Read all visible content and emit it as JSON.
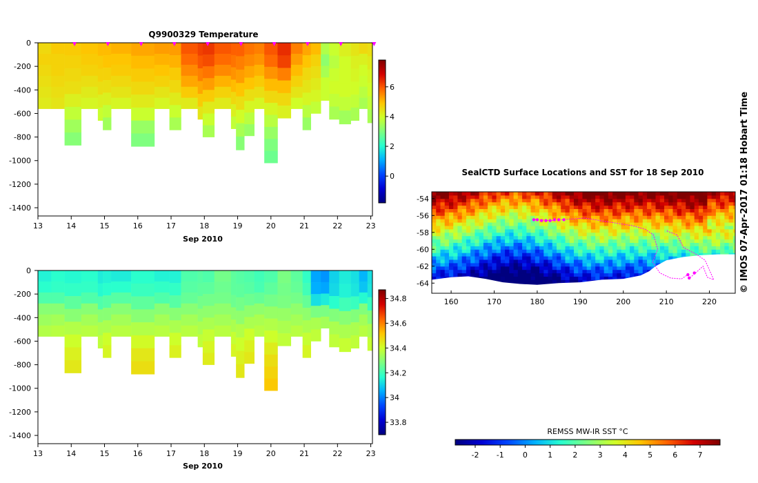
{
  "footer_note": "© IMOS 07-Apr-2017 01:18 Hobart Time",
  "colormap": [
    "#00007f",
    "#0000d4",
    "#0047ff",
    "#00b0ff",
    "#29ffce",
    "#7fff7f",
    "#ceff29",
    "#ffc400",
    "#ff6200",
    "#d40000",
    "#7f0000"
  ],
  "track_color": "#ff00ff",
  "chart_data": [
    {
      "id": "temperature",
      "type": "heatmap",
      "title": "Q9900329  Temperature",
      "xlabel": "Sep 2010",
      "xlim": [
        13,
        23.05
      ],
      "ylim": [
        -1470,
        0
      ],
      "xticks": [
        13,
        14,
        15,
        16,
        17,
        18,
        19,
        20,
        21,
        22,
        23
      ],
      "yticks": [
        0,
        -200,
        -400,
        -600,
        -800,
        -1000,
        -1200,
        -1400
      ],
      "colorbar": {
        "range": [
          -1.8,
          7.8
        ],
        "ticks": [
          6,
          4,
          2,
          0
        ]
      },
      "surface_markers": [
        14.1,
        15.1,
        16.1,
        17.1,
        18.1,
        19.1,
        20.1,
        21.1,
        22.1,
        23.1
      ],
      "profiles": [
        {
          "x": 13.0,
          "depth": 560,
          "values": [
            4.6,
            4.7,
            4.6,
            4.5,
            4.4,
            4.3
          ]
        },
        {
          "x": 13.4,
          "depth": 560,
          "values": [
            4.8,
            4.7,
            4.7,
            4.6,
            4.5,
            4.4
          ]
        },
        {
          "x": 13.8,
          "depth": 870,
          "values": [
            4.8,
            4.7,
            4.6,
            4.5,
            4.2,
            3.8,
            3.4,
            3.1
          ]
        },
        {
          "x": 14.3,
          "depth": 560,
          "values": [
            4.9,
            4.8,
            4.7,
            4.5,
            4.3,
            4.1
          ]
        },
        {
          "x": 14.8,
          "depth": 660,
          "values": [
            5.0,
            4.8,
            4.7,
            4.5,
            4.2,
            3.9
          ]
        },
        {
          "x": 14.95,
          "depth": 740,
          "values": [
            5.0,
            4.9,
            4.7,
            4.5,
            4.2,
            3.8,
            3.4
          ]
        },
        {
          "x": 15.2,
          "depth": 560,
          "values": [
            5.1,
            4.9,
            4.8,
            4.6,
            4.4,
            4.1
          ]
        },
        {
          "x": 15.8,
          "depth": 880,
          "values": [
            5.2,
            5.0,
            4.8,
            4.6,
            4.3,
            3.9,
            3.3,
            3.0
          ]
        },
        {
          "x": 16.5,
          "depth": 560,
          "values": [
            5.3,
            5.1,
            4.9,
            4.7,
            4.4,
            4.1
          ]
        },
        {
          "x": 16.95,
          "depth": 740,
          "values": [
            5.3,
            5.1,
            4.8,
            4.6,
            4.3,
            3.9,
            3.5
          ]
        },
        {
          "x": 17.3,
          "depth": 560,
          "values": [
            6.0,
            5.8,
            5.5,
            5.2,
            4.8,
            4.3
          ]
        },
        {
          "x": 17.8,
          "depth": 650,
          "values": [
            6.2,
            6.0,
            5.6,
            5.2,
            4.8,
            4.4
          ]
        },
        {
          "x": 17.95,
          "depth": 800,
          "values": [
            6.3,
            6.1,
            5.7,
            5.3,
            4.8,
            4.3,
            3.9,
            3.5
          ]
        },
        {
          "x": 18.3,
          "depth": 560,
          "values": [
            6.0,
            5.8,
            5.5,
            5.1,
            4.7,
            4.3
          ]
        },
        {
          "x": 18.8,
          "depth": 730,
          "values": [
            5.9,
            5.7,
            5.4,
            5.0,
            4.6,
            4.2,
            3.8
          ]
        },
        {
          "x": 18.95,
          "depth": 910,
          "values": [
            5.9,
            5.6,
            5.3,
            4.9,
            4.5,
            4.0,
            3.5,
            3.1
          ]
        },
        {
          "x": 19.2,
          "depth": 790,
          "values": [
            5.7,
            5.5,
            5.2,
            4.9,
            4.5,
            4.1,
            3.7,
            3.3
          ]
        },
        {
          "x": 19.5,
          "depth": 560,
          "values": [
            5.6,
            5.4,
            5.1,
            4.8,
            4.5,
            4.1
          ]
        },
        {
          "x": 19.8,
          "depth": 1020,
          "values": [
            6.0,
            5.8,
            5.4,
            5.0,
            4.6,
            4.1,
            3.7,
            3.3,
            3.0,
            2.8
          ]
        },
        {
          "x": 20.2,
          "depth": 640,
          "values": [
            6.4,
            6.2,
            5.6,
            5.0,
            4.6,
            4.2
          ]
        },
        {
          "x": 20.6,
          "depth": 560,
          "values": [
            5.6,
            5.3,
            5.0,
            4.7,
            4.4,
            4.0
          ]
        },
        {
          "x": 20.95,
          "depth": 740,
          "values": [
            5.2,
            4.9,
            4.6,
            4.4,
            4.1,
            3.7,
            3.3
          ]
        },
        {
          "x": 21.2,
          "depth": 600,
          "values": [
            5.0,
            4.7,
            4.5,
            4.3,
            4.1,
            3.8
          ]
        },
        {
          "x": 21.5,
          "depth": 490,
          "values": [
            3.6,
            3.2,
            3.5,
            3.9,
            3.9
          ]
        },
        {
          "x": 21.75,
          "depth": 650,
          "values": [
            3.9,
            3.7,
            3.9,
            4.0,
            3.8,
            3.5
          ]
        },
        {
          "x": 22.05,
          "depth": 690,
          "values": [
            4.2,
            4.0,
            4.0,
            4.0,
            3.8,
            3.4
          ]
        },
        {
          "x": 22.4,
          "depth": 660,
          "values": [
            4.4,
            4.2,
            4.1,
            4.0,
            3.8,
            3.5
          ]
        },
        {
          "x": 22.65,
          "depth": 560,
          "values": [
            4.6,
            4.2,
            4.0,
            3.9,
            3.7,
            3.5
          ]
        },
        {
          "x": 22.9,
          "depth": 680,
          "values": [
            4.5,
            4.3,
            4.1,
            4.0,
            3.8,
            3.5
          ]
        }
      ]
    },
    {
      "id": "salinity",
      "type": "heatmap",
      "title": "",
      "xlabel": "Sep 2010",
      "xlim": [
        13,
        23.05
      ],
      "ylim": [
        -1470,
        0
      ],
      "xticks": [
        13,
        14,
        15,
        16,
        17,
        18,
        19,
        20,
        21,
        22,
        23
      ],
      "yticks": [
        0,
        -200,
        -400,
        -600,
        -800,
        -1000,
        -1200,
        -1400
      ],
      "colorbar": {
        "range": [
          33.7,
          34.87
        ],
        "ticks": [
          34.8,
          34.6,
          34.4,
          34.2,
          34,
          33.8
        ]
      },
      "profiles": [
        {
          "x": 13.0,
          "depth": 560,
          "values": [
            34.15,
            34.17,
            34.22,
            34.3,
            34.33,
            34.36
          ]
        },
        {
          "x": 13.4,
          "depth": 560,
          "values": [
            34.17,
            34.18,
            34.22,
            34.3,
            34.34,
            34.37
          ]
        },
        {
          "x": 13.8,
          "depth": 870,
          "values": [
            34.16,
            34.18,
            34.24,
            34.3,
            34.36,
            34.4,
            34.43,
            34.45
          ]
        },
        {
          "x": 14.3,
          "depth": 560,
          "values": [
            34.17,
            34.18,
            34.22,
            34.3,
            34.34,
            34.37
          ]
        },
        {
          "x": 14.8,
          "depth": 660,
          "values": [
            34.14,
            34.16,
            34.22,
            34.3,
            34.35,
            34.38
          ]
        },
        {
          "x": 14.95,
          "depth": 740,
          "values": [
            34.15,
            34.17,
            34.23,
            34.3,
            34.35,
            34.4,
            34.42
          ]
        },
        {
          "x": 15.2,
          "depth": 560,
          "values": [
            34.14,
            34.17,
            34.23,
            34.3,
            34.34,
            34.37
          ]
        },
        {
          "x": 15.8,
          "depth": 880,
          "values": [
            34.17,
            34.19,
            34.24,
            34.3,
            34.36,
            34.41,
            34.45,
            34.47
          ]
        },
        {
          "x": 16.5,
          "depth": 560,
          "values": [
            34.15,
            34.18,
            34.22,
            34.3,
            34.34,
            34.37
          ]
        },
        {
          "x": 16.95,
          "depth": 740,
          "values": [
            34.15,
            34.18,
            34.23,
            34.3,
            34.35,
            34.4,
            34.43
          ]
        },
        {
          "x": 17.3,
          "depth": 560,
          "values": [
            34.22,
            34.23,
            34.25,
            34.3,
            34.34,
            34.37
          ]
        },
        {
          "x": 17.8,
          "depth": 650,
          "values": [
            34.23,
            34.24,
            34.27,
            34.31,
            34.35,
            34.38
          ]
        },
        {
          "x": 17.95,
          "depth": 800,
          "values": [
            34.22,
            34.24,
            34.27,
            34.31,
            34.35,
            34.39,
            34.42,
            34.44
          ]
        },
        {
          "x": 18.3,
          "depth": 560,
          "values": [
            34.27,
            34.26,
            34.27,
            34.31,
            34.34,
            34.37
          ]
        },
        {
          "x": 18.8,
          "depth": 730,
          "values": [
            34.24,
            34.24,
            34.26,
            34.31,
            34.35,
            34.39,
            34.42
          ]
        },
        {
          "x": 18.95,
          "depth": 910,
          "values": [
            34.23,
            34.24,
            34.27,
            34.31,
            34.36,
            34.4,
            34.43,
            34.45
          ]
        },
        {
          "x": 19.2,
          "depth": 790,
          "values": [
            34.22,
            34.23,
            34.26,
            34.31,
            34.35,
            34.4,
            34.43,
            34.45
          ]
        },
        {
          "x": 19.5,
          "depth": 560,
          "values": [
            34.2,
            34.21,
            34.25,
            34.31,
            34.35,
            34.37
          ]
        },
        {
          "x": 19.8,
          "depth": 1020,
          "values": [
            34.22,
            34.24,
            34.27,
            34.32,
            34.36,
            34.4,
            34.44,
            34.47,
            34.49,
            34.51
          ]
        },
        {
          "x": 20.2,
          "depth": 640,
          "values": [
            34.28,
            34.27,
            34.28,
            34.32,
            34.35,
            34.38
          ]
        },
        {
          "x": 20.6,
          "depth": 560,
          "values": [
            34.24,
            34.25,
            34.27,
            34.31,
            34.34,
            34.37
          ]
        },
        {
          "x": 20.95,
          "depth": 740,
          "values": [
            34.18,
            34.2,
            34.25,
            34.31,
            34.35,
            34.39,
            34.42
          ]
        },
        {
          "x": 21.2,
          "depth": 600,
          "values": [
            34.04,
            34.05,
            34.12,
            34.28,
            34.35,
            34.38
          ]
        },
        {
          "x": 21.5,
          "depth": 490,
          "values": [
            34.02,
            34.04,
            34.14,
            34.28,
            34.34
          ]
        },
        {
          "x": 21.75,
          "depth": 650,
          "values": [
            34.1,
            34.11,
            34.17,
            34.29,
            34.35,
            34.38
          ]
        },
        {
          "x": 22.05,
          "depth": 690,
          "values": [
            34.14,
            34.15,
            34.2,
            34.3,
            34.35,
            34.39
          ]
        },
        {
          "x": 22.4,
          "depth": 660,
          "values": [
            34.12,
            34.13,
            34.19,
            34.29,
            34.35,
            34.38
          ]
        },
        {
          "x": 22.65,
          "depth": 560,
          "values": [
            34.06,
            34.08,
            34.16,
            34.29,
            34.34,
            34.37
          ]
        },
        {
          "x": 22.9,
          "depth": 680,
          "values": [
            34.12,
            34.13,
            34.19,
            34.29,
            34.35,
            34.39
          ]
        }
      ]
    },
    {
      "id": "sst_map",
      "type": "heatmap",
      "title": "SealCTD Surface Locations and SST for 18 Sep 2010",
      "xlim": [
        155.5,
        226
      ],
      "ylim": [
        -65.2,
        -53.2
      ],
      "xticks": [
        160,
        170,
        180,
        190,
        200,
        210,
        220
      ],
      "yticks": [
        -54,
        -56,
        -58,
        -60,
        -62,
        -64
      ],
      "colorbar": {
        "label": "REMSS MW-IR SST °C",
        "range": [
          -2.8,
          7.8
        ],
        "ticks": [
          -2,
          -1,
          0,
          1,
          2,
          3,
          4,
          5,
          6,
          7
        ]
      },
      "track": [
        [
          179.5,
          -56.5
        ],
        [
          183,
          -56.6
        ],
        [
          186,
          -56.5
        ],
        [
          191,
          -56.3
        ],
        [
          197,
          -56.8
        ],
        [
          202,
          -57.2
        ],
        [
          205,
          -57.6
        ],
        [
          207,
          -58.3
        ],
        [
          208,
          -60.0
        ],
        [
          206.8,
          -61.5
        ],
        [
          208.5,
          -62.8
        ],
        [
          211,
          -63.4
        ],
        [
          213.5,
          -63.5
        ],
        [
          215,
          -63.0
        ],
        [
          215.4,
          -63.4
        ],
        [
          217,
          -62.7
        ],
        [
          218.5,
          -62.0
        ],
        [
          219.5,
          -63.3
        ],
        [
          221,
          -63.6
        ],
        [
          219,
          -61.3
        ],
        [
          217,
          -60.6
        ],
        [
          214,
          -59.8
        ],
        [
          212.5,
          -58.3
        ],
        [
          210,
          -57.8
        ]
      ],
      "track_points": [
        [
          179.2,
          -56.5
        ],
        [
          180,
          -56.5
        ],
        [
          181,
          -56.6
        ],
        [
          182,
          -56.6
        ],
        [
          183,
          -56.6
        ],
        [
          184,
          -56.5
        ],
        [
          185,
          -56.5
        ],
        [
          186.2,
          -56.5
        ],
        [
          215,
          -63.0
        ],
        [
          215.3,
          -63.4
        ],
        [
          216.5,
          -62.8
        ]
      ]
    }
  ]
}
